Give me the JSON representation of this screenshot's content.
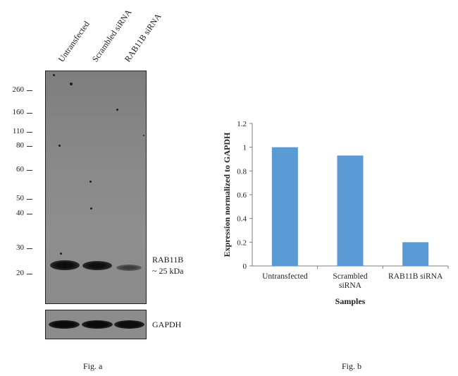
{
  "blot": {
    "lanes": [
      "Untransfected",
      "Scrambled siRNA",
      "RAB11B siRNA"
    ],
    "mw_markers": [
      "260",
      "160",
      "110",
      "80",
      "60",
      "50",
      "40",
      "30",
      "20"
    ],
    "target_label_line1": "RAB11B",
    "target_label_line2": "~ 25 kDa",
    "loading_control": "GAPDH",
    "caption": "Fig. a"
  },
  "chart_data": {
    "type": "bar",
    "categories": [
      "Untransfected",
      "Scrambled siRNA",
      "RAB11B siRNA"
    ],
    "category_tick_labels": [
      [
        "Untransfected"
      ],
      [
        "Scrambled",
        "siRNA"
      ],
      [
        "RAB11B siRNA"
      ]
    ],
    "values": [
      1.0,
      0.93,
      0.2
    ],
    "xlabel": "Samples",
    "ylabel": "Expression normalized to GAPDH",
    "ylim": [
      0,
      1.2
    ],
    "yticks": [
      "0",
      "0.2",
      "0.4",
      "0.6",
      "0.8",
      "1",
      "1.2"
    ],
    "bar_color": "#5b9bd5",
    "grid": false,
    "caption": "Fig. b"
  }
}
